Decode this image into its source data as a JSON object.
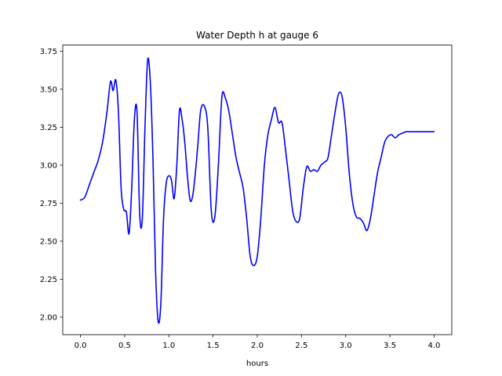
{
  "chart_data": {
    "type": "line",
    "title": "Water Depth h at gauge 6",
    "xlabel": "hours",
    "ylabel": "",
    "xlim": [
      -0.2,
      4.2
    ],
    "ylim": [
      1.885,
      3.79
    ],
    "xticks": [
      0.0,
      0.5,
      1.0,
      1.5,
      2.0,
      2.5,
      3.0,
      3.5,
      4.0
    ],
    "xtick_labels": [
      "0.0",
      "0.5",
      "1.0",
      "1.5",
      "2.0",
      "2.5",
      "3.0",
      "3.5",
      "4.0"
    ],
    "yticks": [
      2.0,
      2.25,
      2.5,
      2.75,
      3.0,
      3.25,
      3.5,
      3.75
    ],
    "ytick_labels": [
      "2.00",
      "2.25",
      "2.50",
      "2.75",
      "3.00",
      "3.25",
      "3.50",
      "3.75"
    ],
    "grid": false,
    "series": [
      {
        "color": "#0000ff",
        "x": [
          0.0,
          0.05,
          0.1,
          0.15,
          0.2,
          0.25,
          0.3,
          0.34,
          0.37,
          0.4,
          0.43,
          0.46,
          0.49,
          0.52,
          0.55,
          0.58,
          0.61,
          0.64,
          0.67,
          0.7,
          0.73,
          0.76,
          0.79,
          0.82,
          0.85,
          0.88,
          0.91,
          0.94,
          0.97,
          1.0,
          1.03,
          1.06,
          1.09,
          1.12,
          1.15,
          1.18,
          1.21,
          1.24,
          1.27,
          1.3,
          1.33,
          1.36,
          1.4,
          1.44,
          1.48,
          1.52,
          1.56,
          1.6,
          1.64,
          1.68,
          1.72,
          1.76,
          1.8,
          1.84,
          1.88,
          1.92,
          1.96,
          2.0,
          2.04,
          2.08,
          2.12,
          2.16,
          2.2,
          2.24,
          2.28,
          2.32,
          2.36,
          2.4,
          2.44,
          2.48,
          2.52,
          2.56,
          2.6,
          2.64,
          2.68,
          2.72,
          2.76,
          2.8,
          2.84,
          2.88,
          2.92,
          2.96,
          3.0,
          3.04,
          3.08,
          3.12,
          3.16,
          3.2,
          3.24,
          3.28,
          3.32,
          3.36,
          3.4,
          3.44,
          3.48,
          3.52,
          3.56,
          3.6,
          3.64,
          3.68,
          3.72,
          3.76,
          3.8,
          3.84,
          3.88,
          3.92,
          3.96,
          4.0
        ],
        "y": [
          2.77,
          2.79,
          2.87,
          2.95,
          3.03,
          3.15,
          3.35,
          3.55,
          3.49,
          3.56,
          3.35,
          2.85,
          2.71,
          2.69,
          2.55,
          2.85,
          3.3,
          3.35,
          2.68,
          2.65,
          3.25,
          3.69,
          3.55,
          3.05,
          2.3,
          1.97,
          2.1,
          2.65,
          2.88,
          2.93,
          2.9,
          2.78,
          3.0,
          3.36,
          3.3,
          3.15,
          2.93,
          2.77,
          2.8,
          2.95,
          3.15,
          3.36,
          3.39,
          3.25,
          2.7,
          2.66,
          3.0,
          3.45,
          3.44,
          3.35,
          3.2,
          3.05,
          2.95,
          2.85,
          2.65,
          2.4,
          2.34,
          2.4,
          2.65,
          3.0,
          3.2,
          3.3,
          3.38,
          3.28,
          3.28,
          3.1,
          2.9,
          2.7,
          2.63,
          2.65,
          2.85,
          2.99,
          2.96,
          2.97,
          2.96,
          3.0,
          3.02,
          3.05,
          3.2,
          3.35,
          3.47,
          3.45,
          3.25,
          2.95,
          2.75,
          2.66,
          2.65,
          2.62,
          2.57,
          2.65,
          2.8,
          2.95,
          3.05,
          3.15,
          3.19,
          3.2,
          3.18,
          3.2,
          3.21,
          3.22,
          3.22,
          3.22,
          3.22,
          3.22,
          3.22,
          3.22,
          3.22,
          3.22
        ]
      }
    ]
  }
}
